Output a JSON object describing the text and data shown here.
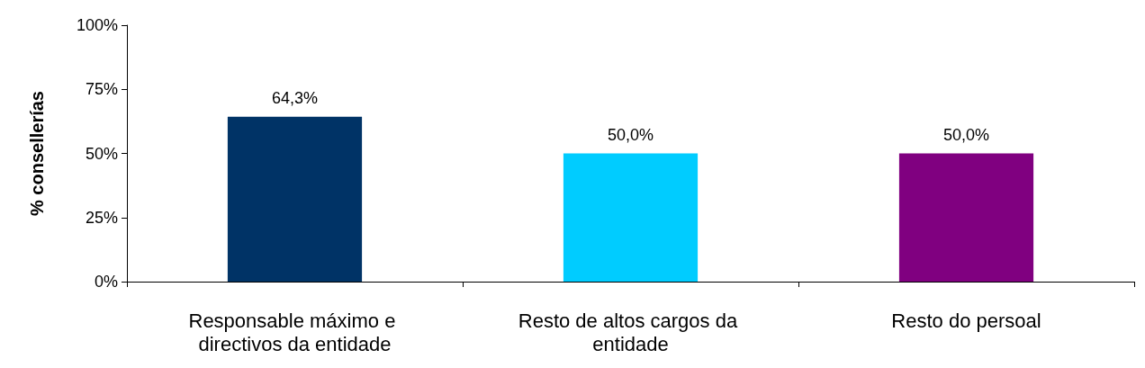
{
  "chart_data": {
    "type": "bar",
    "ylabel": "% consellerías",
    "categories": [
      "Responsable máximo e directivos da entidade",
      "Resto de altos cargos da entidade",
      "Resto do persoal"
    ],
    "values": [
      64.3,
      50,
      50
    ],
    "colors": [
      "#003366",
      "#00ccff",
      "#800080"
    ],
    "value_labels": [
      "64,3%",
      "50,0%",
      "50,0%"
    ],
    "ylim": [
      0,
      100
    ],
    "yticks": [
      {
        "value": 0,
        "label": "0%"
      },
      {
        "value": 25,
        "label": "25%"
      },
      {
        "value": 50,
        "label": "50%"
      },
      {
        "value": 75,
        "label": "75%"
      },
      {
        "value": 100,
        "label": "100%"
      }
    ],
    "grid": false
  }
}
